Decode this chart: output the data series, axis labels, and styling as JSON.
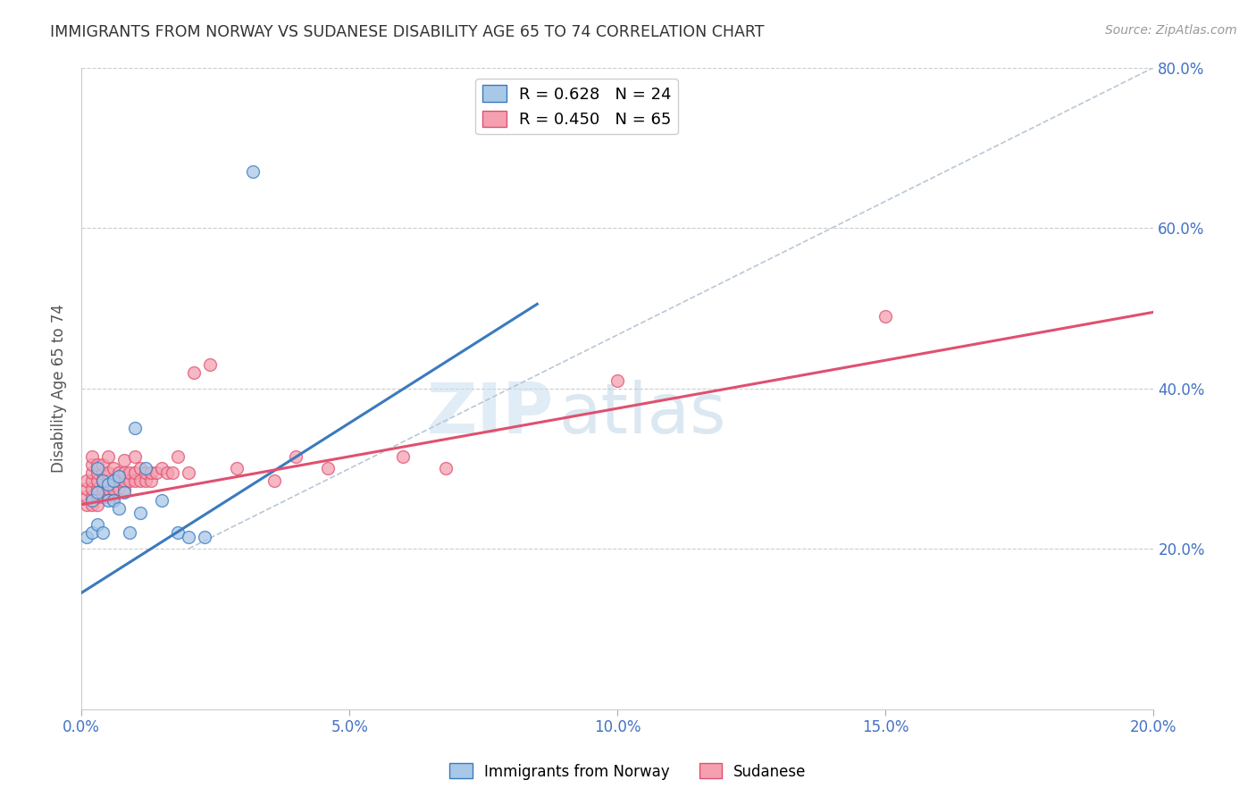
{
  "title": "IMMIGRANTS FROM NORWAY VS SUDANESE DISABILITY AGE 65 TO 74 CORRELATION CHART",
  "source": "Source: ZipAtlas.com",
  "ylabel": "Disability Age 65 to 74",
  "legend_label1": "Immigrants from Norway",
  "legend_label2": "Sudanese",
  "R1": 0.628,
  "N1": 24,
  "R2": 0.45,
  "N2": 65,
  "color1": "#a8c8e8",
  "color2": "#f4a0b0",
  "trendline1_color": "#3a7abf",
  "trendline2_color": "#e05070",
  "diagonal_color": "#b8c8d8",
  "xlim": [
    0.0,
    0.2
  ],
  "ylim": [
    0.0,
    0.8
  ],
  "xticks": [
    0.0,
    0.05,
    0.1,
    0.15,
    0.2
  ],
  "yticks": [
    0.0,
    0.2,
    0.4,
    0.6,
    0.8
  ],
  "xticklabels": [
    "0.0%",
    "5.0%",
    "10.0%",
    "15.0%",
    "20.0%"
  ],
  "yticklabels": [
    "",
    "20.0%",
    "40.0%",
    "60.0%",
    "80.0%"
  ],
  "norway_x": [
    0.001,
    0.002,
    0.002,
    0.003,
    0.003,
    0.003,
    0.004,
    0.004,
    0.005,
    0.005,
    0.006,
    0.006,
    0.007,
    0.007,
    0.008,
    0.009,
    0.01,
    0.011,
    0.012,
    0.015,
    0.018,
    0.02,
    0.023,
    0.032
  ],
  "norway_y": [
    0.215,
    0.22,
    0.26,
    0.23,
    0.27,
    0.3,
    0.22,
    0.285,
    0.26,
    0.28,
    0.26,
    0.285,
    0.29,
    0.25,
    0.27,
    0.22,
    0.35,
    0.245,
    0.3,
    0.26,
    0.22,
    0.215,
    0.215,
    0.67
  ],
  "sudanese_x": [
    0.001,
    0.001,
    0.001,
    0.001,
    0.002,
    0.002,
    0.002,
    0.002,
    0.002,
    0.002,
    0.002,
    0.003,
    0.003,
    0.003,
    0.003,
    0.003,
    0.003,
    0.004,
    0.004,
    0.004,
    0.004,
    0.004,
    0.005,
    0.005,
    0.005,
    0.005,
    0.005,
    0.006,
    0.006,
    0.006,
    0.006,
    0.007,
    0.007,
    0.007,
    0.008,
    0.008,
    0.008,
    0.008,
    0.009,
    0.009,
    0.01,
    0.01,
    0.01,
    0.011,
    0.011,
    0.012,
    0.012,
    0.013,
    0.013,
    0.014,
    0.015,
    0.016,
    0.017,
    0.018,
    0.02,
    0.021,
    0.024,
    0.029,
    0.036,
    0.04,
    0.046,
    0.06,
    0.068,
    0.1,
    0.15
  ],
  "sudanese_y": [
    0.255,
    0.265,
    0.275,
    0.285,
    0.255,
    0.265,
    0.275,
    0.285,
    0.295,
    0.305,
    0.315,
    0.255,
    0.265,
    0.275,
    0.285,
    0.295,
    0.305,
    0.265,
    0.275,
    0.285,
    0.295,
    0.305,
    0.265,
    0.275,
    0.285,
    0.295,
    0.315,
    0.265,
    0.275,
    0.285,
    0.3,
    0.275,
    0.285,
    0.295,
    0.275,
    0.285,
    0.295,
    0.31,
    0.285,
    0.295,
    0.285,
    0.295,
    0.315,
    0.285,
    0.3,
    0.285,
    0.295,
    0.285,
    0.295,
    0.295,
    0.3,
    0.295,
    0.295,
    0.315,
    0.295,
    0.42,
    0.43,
    0.3,
    0.285,
    0.315,
    0.3,
    0.315,
    0.3,
    0.41,
    0.49
  ],
  "norway_trend_x0": 0.0,
  "norway_trend_y0": 0.145,
  "norway_trend_x1": 0.085,
  "norway_trend_y1": 0.505,
  "sudanese_trend_x0": 0.0,
  "sudanese_trend_y0": 0.255,
  "sudanese_trend_x1": 0.2,
  "sudanese_trend_y1": 0.495,
  "watermark_zip": "ZIP",
  "watermark_atlas": "atlas",
  "background_color": "#ffffff"
}
